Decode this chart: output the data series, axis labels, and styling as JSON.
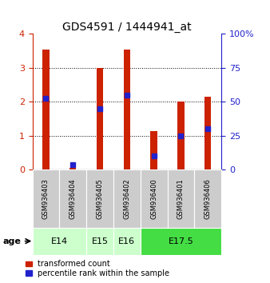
{
  "title": "GDS4591 / 1444941_at",
  "samples": [
    "GSM936403",
    "GSM936404",
    "GSM936405",
    "GSM936402",
    "GSM936400",
    "GSM936401",
    "GSM936406"
  ],
  "transformed_counts": [
    3.55,
    0.05,
    3.0,
    3.55,
    1.15,
    2.0,
    2.15
  ],
  "percentile_ranks_scaled": [
    2.1,
    0.15,
    1.8,
    2.2,
    0.42,
    1.0,
    1.2
  ],
  "age_groups": [
    {
      "label": "E14",
      "start": 0,
      "end": 2,
      "color": "#ccffcc"
    },
    {
      "label": "E15",
      "start": 2,
      "end": 3,
      "color": "#ccffcc"
    },
    {
      "label": "E16",
      "start": 3,
      "end": 4,
      "color": "#ccffcc"
    },
    {
      "label": "E17.5",
      "start": 4,
      "end": 7,
      "color": "#44dd44"
    }
  ],
  "ylim_left": [
    0,
    4
  ],
  "ylim_right": [
    0,
    100
  ],
  "yticks_left": [
    0,
    1,
    2,
    3,
    4
  ],
  "yticks_right": [
    0,
    25,
    50,
    75,
    100
  ],
  "bar_color": "#cc2200",
  "dot_color": "#2222cc",
  "bar_width": 0.25,
  "dot_size": 25,
  "left_tick_color": "#cc2200",
  "right_tick_color": "#2222cc",
  "legend_labels": [
    "transformed count",
    "percentile rank within the sample"
  ],
  "age_label": "age",
  "sample_box_color": "#cccccc",
  "grid_color": "black",
  "grid_linestyle": "dotted",
  "grid_lw": 0.7,
  "title_fontsize": 10,
  "tick_labelsize": 8,
  "sample_fontsize": 6,
  "age_fontsize": 8,
  "legend_fontsize": 7
}
